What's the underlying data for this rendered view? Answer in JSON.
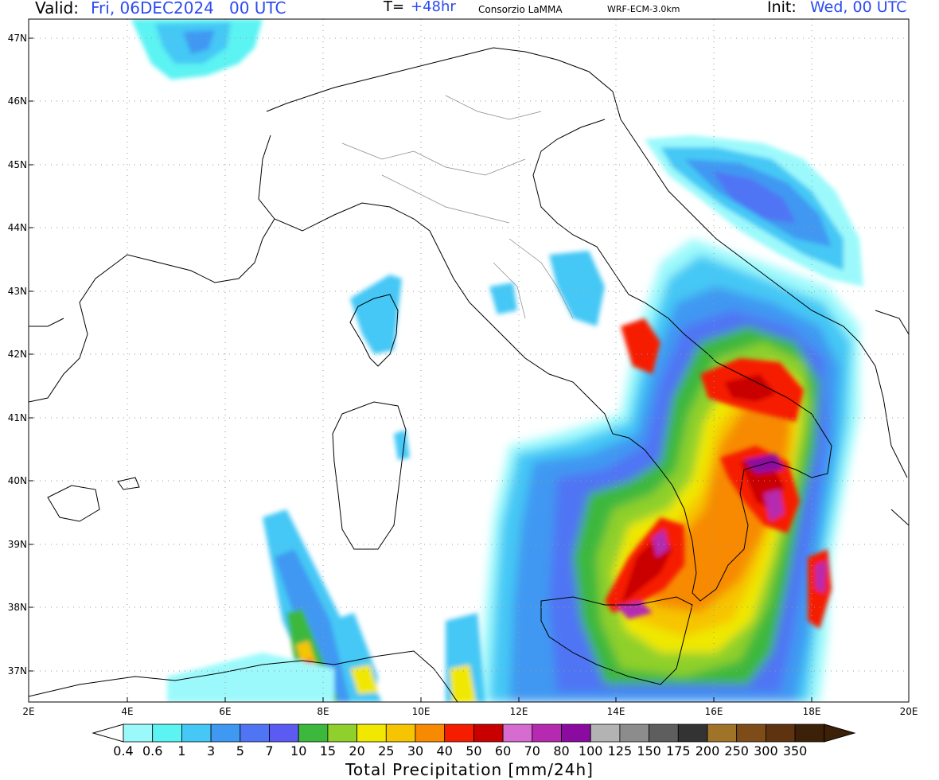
{
  "header": {
    "valid_label": "Valid:",
    "valid_value": "Fri, 06DEC2024   00 UTC",
    "t_label": "T=",
    "t_value": "+48hr",
    "producer": "Consorzio LaMMA",
    "model": "WRF-ECM-3.0km",
    "init_label": "Init:",
    "init_value": "Wed, 00 UTC"
  },
  "axes": {
    "lat_labels": [
      "47N",
      "46N",
      "45N",
      "44N",
      "43N",
      "42N",
      "41N",
      "40N",
      "39N",
      "38N",
      "37N"
    ],
    "lon_labels": [
      "2E",
      "4E",
      "6E",
      "8E",
      "10E",
      "12E",
      "14E",
      "16E",
      "18E",
      "20E"
    ]
  },
  "colorbar": {
    "title": "Total Precipitation [mm/24h]",
    "levels": [
      "0.4",
      "0.6",
      "1",
      "3",
      "5",
      "7",
      "10",
      "15",
      "20",
      "25",
      "30",
      "40",
      "50",
      "60",
      "70",
      "80",
      "100",
      "125",
      "150",
      "175",
      "200",
      "250",
      "300",
      "350"
    ],
    "colors": [
      "#9cf9fb",
      "#5cf3f3",
      "#45c8f5",
      "#3f98f2",
      "#4f74f4",
      "#5b5af3",
      "#3cb83c",
      "#8fd02c",
      "#f0e800",
      "#f6c400",
      "#f78a00",
      "#f61c00",
      "#c90000",
      "#d66ccf",
      "#b52ab0",
      "#8b0aa0",
      "#b3b3b3",
      "#8c8c8c",
      "#5e5e5e",
      "#333333",
      "#a07428",
      "#7e4c18",
      "#5e3410",
      "#3d2008"
    ]
  }
}
